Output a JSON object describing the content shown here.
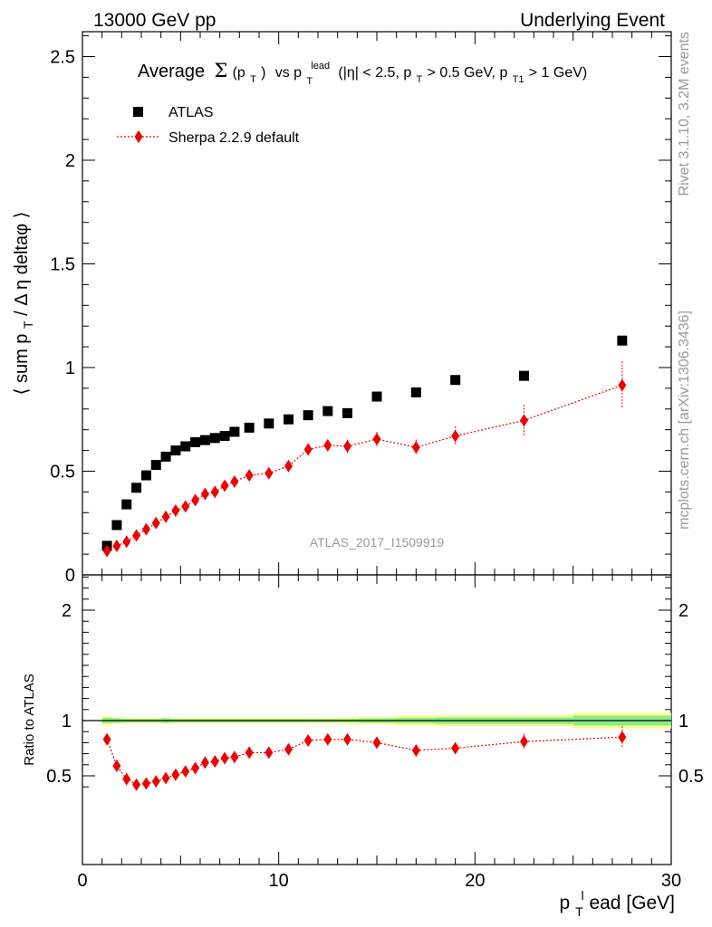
{
  "header": {
    "left": "13000 GeV pp",
    "right": "Underlying Event"
  },
  "side": {
    "rivet": "Rivet 3.1.10,  3.2M events",
    "mcplots": "mcplots.cern.ch [arXiv:1306.3436]"
  },
  "analysis_id": "ATLAS_2017_I1509919",
  "colors": {
    "data": "#000000",
    "mc": "#ee0000",
    "band_inner": "#88ee88",
    "band_outer": "#ffff88",
    "text_grey": "#999999"
  },
  "chart_data": [
    {
      "type": "scatter",
      "title_parts": {
        "average": "Average",
        "sigma": "Σ",
        "open": "(p",
        "t_sub": "T",
        "close": ")",
        "vs": "vs p",
        "lead_sup": "lead",
        "range1": "(|η| < 2.5, p",
        "range2": " > 0.5 GeV, p",
        "t1_sub": "T1",
        "range3": " > 1 GeV)"
      },
      "ylabel_parts": {
        "main": "⟨ sum p",
        "sub": "T",
        "rest": " / Δ η deltaφ ⟩"
      },
      "xlim": [
        0,
        30
      ],
      "ylim": [
        0,
        2.62
      ],
      "y_ticks": [
        0,
        0.5,
        1,
        1.5,
        2,
        2.5
      ],
      "y_tick_labels": [
        "0",
        "0.5",
        "1",
        "1.5",
        "2",
        "2.5"
      ],
      "legend_position": "top-left",
      "series": [
        {
          "name": "ATLAS",
          "marker": "square",
          "x": [
            1.25,
            1.75,
            2.25,
            2.75,
            3.25,
            3.75,
            4.25,
            4.75,
            5.25,
            5.75,
            6.25,
            6.75,
            7.25,
            7.75,
            8.5,
            9.5,
            10.5,
            11.5,
            12.5,
            13.5,
            15,
            17,
            19,
            22.5,
            27.5
          ],
          "y": [
            0.14,
            0.24,
            0.34,
            0.42,
            0.48,
            0.53,
            0.57,
            0.6,
            0.62,
            0.64,
            0.65,
            0.66,
            0.67,
            0.69,
            0.71,
            0.73,
            0.75,
            0.77,
            0.79,
            0.78,
            0.86,
            0.88,
            0.94,
            0.96,
            1.13
          ],
          "yerr": []
        },
        {
          "name": "Sherpa 2.2.9 default",
          "marker": "diamond",
          "line": "dotted",
          "x": [
            1.25,
            1.75,
            2.25,
            2.75,
            3.25,
            3.75,
            4.25,
            4.75,
            5.25,
            5.75,
            6.25,
            6.75,
            7.25,
            7.75,
            8.5,
            9.5,
            10.5,
            11.5,
            12.5,
            13.5,
            15,
            17,
            19,
            22.5,
            27.5
          ],
          "y": [
            0.115,
            0.14,
            0.16,
            0.19,
            0.22,
            0.25,
            0.28,
            0.31,
            0.33,
            0.36,
            0.39,
            0.4,
            0.43,
            0.45,
            0.48,
            0.49,
            0.525,
            0.605,
            0.625,
            0.62,
            0.655,
            0.615,
            0.67,
            0.745,
            0.915
          ],
          "yerr": [
            0.008,
            0.008,
            0.008,
            0.008,
            0.008,
            0.008,
            0.008,
            0.009,
            0.009,
            0.009,
            0.01,
            0.01,
            0.012,
            0.013,
            0.015,
            0.016,
            0.018,
            0.02,
            0.028,
            0.032,
            0.035,
            0.038,
            0.045,
            0.075,
            0.115
          ]
        }
      ]
    },
    {
      "type": "scatter",
      "ylabel": "Ratio to ATLAS",
      "xlabel_parts": {
        "p": "p",
        "sub": "T",
        "sup": "l",
        "rest": "ead [GeV]"
      },
      "xlim": [
        0,
        30
      ],
      "ylim": [
        0.35,
        2.33
      ],
      "x_ticks": [
        0,
        10,
        20,
        30
      ],
      "x_tick_labels": [
        "0",
        "10",
        "20",
        "30"
      ],
      "y_ticks": [
        0.5,
        1,
        2
      ],
      "y_tick_labels": [
        "0.5",
        "1",
        "2"
      ],
      "reference_line": 1,
      "band_edges": [
        1,
        1.5,
        2,
        2.5,
        3,
        3.5,
        4,
        4.5,
        5,
        6,
        7,
        8,
        9,
        10,
        11,
        12,
        13,
        14,
        16,
        18,
        20,
        25,
        30
      ],
      "band_inner_halfwidth": [
        0.025,
        0.02,
        0.015,
        0.015,
        0.015,
        0.015,
        0.02,
        0.015,
        0.015,
        0.015,
        0.015,
        0.015,
        0.015,
        0.015,
        0.015,
        0.015,
        0.015,
        0.02,
        0.025,
        0.03,
        0.03,
        0.045
      ],
      "band_outer_halfwidth": [
        0.045,
        0.03,
        0.025,
        0.025,
        0.025,
        0.025,
        0.03,
        0.025,
        0.025,
        0.025,
        0.025,
        0.025,
        0.025,
        0.025,
        0.025,
        0.025,
        0.03,
        0.035,
        0.045,
        0.05,
        0.05,
        0.07
      ],
      "series": [
        {
          "name": "Sherpa 2.2.9 default",
          "marker": "diamond",
          "line": "dotted",
          "x": [
            1.25,
            1.75,
            2.25,
            2.75,
            3.25,
            3.75,
            4.25,
            4.75,
            5.25,
            5.75,
            6.25,
            6.75,
            7.25,
            7.75,
            8.5,
            9.5,
            10.5,
            11.5,
            12.5,
            13.5,
            15,
            17,
            19,
            22.5,
            27.5
          ],
          "y": [
            0.83,
            0.59,
            0.47,
            0.42,
            0.43,
            0.45,
            0.48,
            0.51,
            0.54,
            0.57,
            0.62,
            0.63,
            0.66,
            0.67,
            0.71,
            0.71,
            0.74,
            0.82,
            0.83,
            0.83,
            0.8,
            0.73,
            0.75,
            0.81,
            0.85
          ],
          "yerr": [
            0.01,
            0.01,
            0.01,
            0.01,
            0.01,
            0.01,
            0.01,
            0.01,
            0.012,
            0.012,
            0.013,
            0.013,
            0.015,
            0.015,
            0.018,
            0.02,
            0.022,
            0.025,
            0.035,
            0.04,
            0.04,
            0.045,
            0.05,
            0.07,
            0.1
          ]
        }
      ]
    }
  ]
}
